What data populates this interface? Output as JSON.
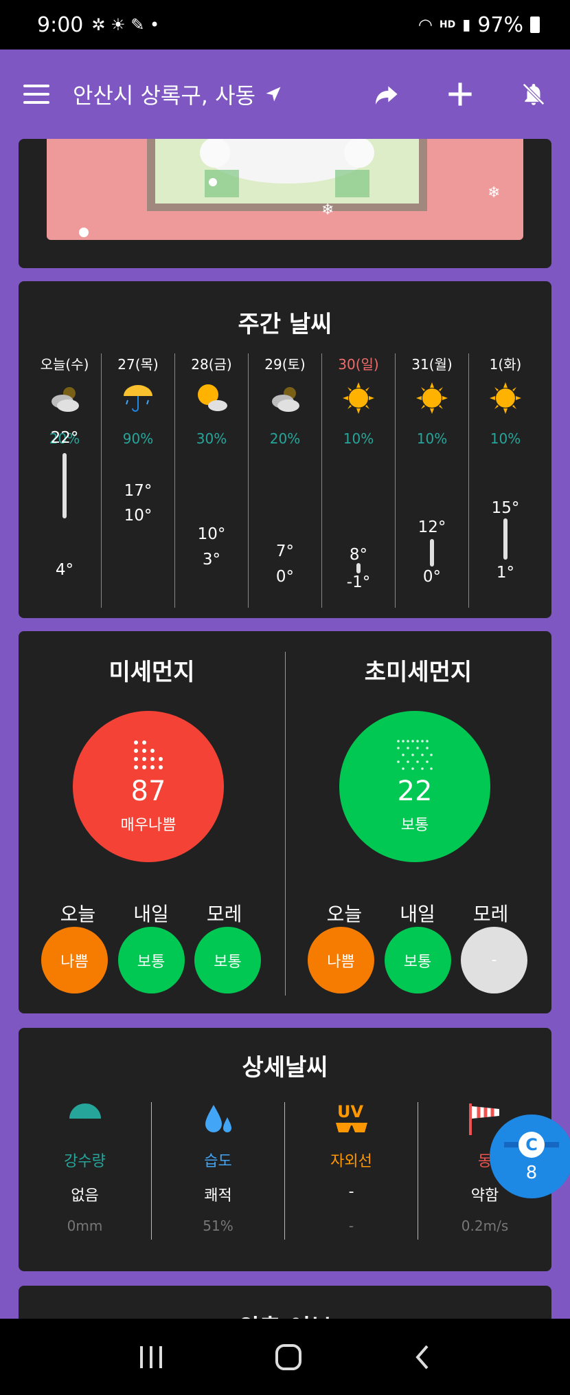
{
  "status_bar": {
    "time": "9:00",
    "battery": "97%",
    "net_label": "HD"
  },
  "app_bar": {
    "location": "안산시 상록구, 사동"
  },
  "weekly": {
    "title": "주간 날씨",
    "days": [
      {
        "name": "오늘(수)",
        "icon": "cloud-sun-icon",
        "precip": "20%",
        "high": "22°",
        "low": "4°",
        "name_color": "#ffffff"
      },
      {
        "name": "27(목)",
        "icon": "umbrella-rain-icon",
        "precip": "90%",
        "high": "17°",
        "low": "10°",
        "name_color": "#ffffff"
      },
      {
        "name": "28(금)",
        "icon": "sun-cloud-icon",
        "precip": "30%",
        "high": "10°",
        "low": "3°",
        "name_color": "#ffffff"
      },
      {
        "name": "29(토)",
        "icon": "cloud-sun-icon",
        "precip": "20%",
        "high": "7°",
        "low": "0°",
        "name_color": "#ffffff"
      },
      {
        "name": "30(일)",
        "icon": "sun-icon",
        "precip": "10%",
        "high": "8°",
        "low": "-1°",
        "name_color": "#ef6c6c"
      },
      {
        "name": "31(월)",
        "icon": "sun-icon",
        "precip": "10%",
        "high": "12°",
        "low": "0°",
        "name_color": "#ffffff"
      },
      {
        "name": "1(화)",
        "icon": "sun-icon",
        "precip": "10%",
        "high": "15°",
        "low": "1°",
        "name_color": "#ffffff"
      }
    ]
  },
  "dust": {
    "pm10": {
      "title": "미세먼지",
      "value": "87",
      "level": "매우나쁨",
      "color": "#f44336",
      "forecast_labels": [
        "오늘",
        "내일",
        "모레"
      ],
      "forecast": [
        {
          "text": "나쁨",
          "color": "#f57c00"
        },
        {
          "text": "보통",
          "color": "#00c853"
        },
        {
          "text": "보통",
          "color": "#00c853"
        }
      ]
    },
    "pm25": {
      "title": "초미세먼지",
      "value": "22",
      "level": "보통",
      "color": "#00c853",
      "forecast_labels": [
        "오늘",
        "내일",
        "모레"
      ],
      "forecast": [
        {
          "text": "나쁨",
          "color": "#f57c00"
        },
        {
          "text": "보통",
          "color": "#00c853"
        },
        {
          "text": "-",
          "color": "#e0e0e0"
        }
      ]
    }
  },
  "detail": {
    "title": "상세날씨",
    "items": [
      {
        "label": "강수량",
        "label_color": "#26a69a",
        "value": "없음",
        "sub": "0mm",
        "icon": "umbrella-icon"
      },
      {
        "label": "습도",
        "label_color": "#42a5f5",
        "value": "쾌적",
        "sub": "51%",
        "icon": "water-drops-icon"
      },
      {
        "label": "자외선",
        "label_color": "#ff9800",
        "value": "-",
        "sub": "-",
        "icon": "uv-sunglasses-icon"
      },
      {
        "label": "동",
        "label_color": "#ef5350",
        "value": "약함",
        "sub": "0.2m/s",
        "icon": "windsock-icon"
      }
    ]
  },
  "next_card": {
    "title": "외출 여부"
  },
  "fab": {
    "count": "8"
  }
}
